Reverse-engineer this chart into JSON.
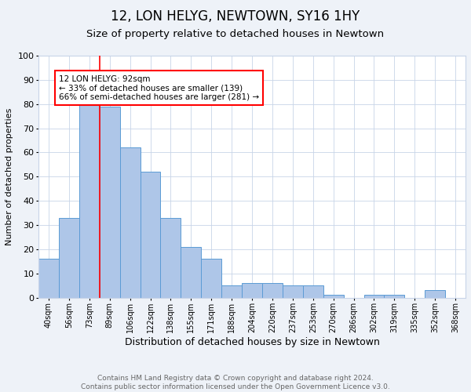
{
  "title": "12, LON HELYG, NEWTOWN, SY16 1HY",
  "subtitle": "Size of property relative to detached houses in Newtown",
  "xlabel": "Distribution of detached houses by size in Newtown",
  "ylabel": "Number of detached properties",
  "bin_labels": [
    "40sqm",
    "56sqm",
    "73sqm",
    "89sqm",
    "106sqm",
    "122sqm",
    "138sqm",
    "155sqm",
    "171sqm",
    "188sqm",
    "204sqm",
    "220sqm",
    "237sqm",
    "253sqm",
    "270sqm",
    "286sqm",
    "302sqm",
    "319sqm",
    "335sqm",
    "352sqm",
    "368sqm"
  ],
  "bar_heights": [
    16,
    33,
    80,
    79,
    62,
    52,
    33,
    21,
    16,
    5,
    6,
    6,
    5,
    5,
    1,
    0,
    1,
    1,
    0,
    3,
    0
  ],
  "bar_color": "#aec6e8",
  "bar_edge_color": "#5b9bd5",
  "vline_x": 2.5,
  "vline_color": "red",
  "annotation_text": "12 LON HELYG: 92sqm\n← 33% of detached houses are smaller (139)\n66% of semi-detached houses are larger (281) →",
  "annotation_box_color": "white",
  "annotation_box_edge_color": "red",
  "ylim": [
    0,
    100
  ],
  "footnote": "Contains HM Land Registry data © Crown copyright and database right 2024.\nContains public sector information licensed under the Open Government Licence v3.0.",
  "background_color": "#eef2f8",
  "plot_background_color": "white",
  "grid_color": "#c8d4e8",
  "title_fontsize": 12,
  "subtitle_fontsize": 9.5,
  "xlabel_fontsize": 9,
  "ylabel_fontsize": 8,
  "tick_fontsize": 7,
  "footnote_fontsize": 6.5,
  "footnote_color": "#666666"
}
